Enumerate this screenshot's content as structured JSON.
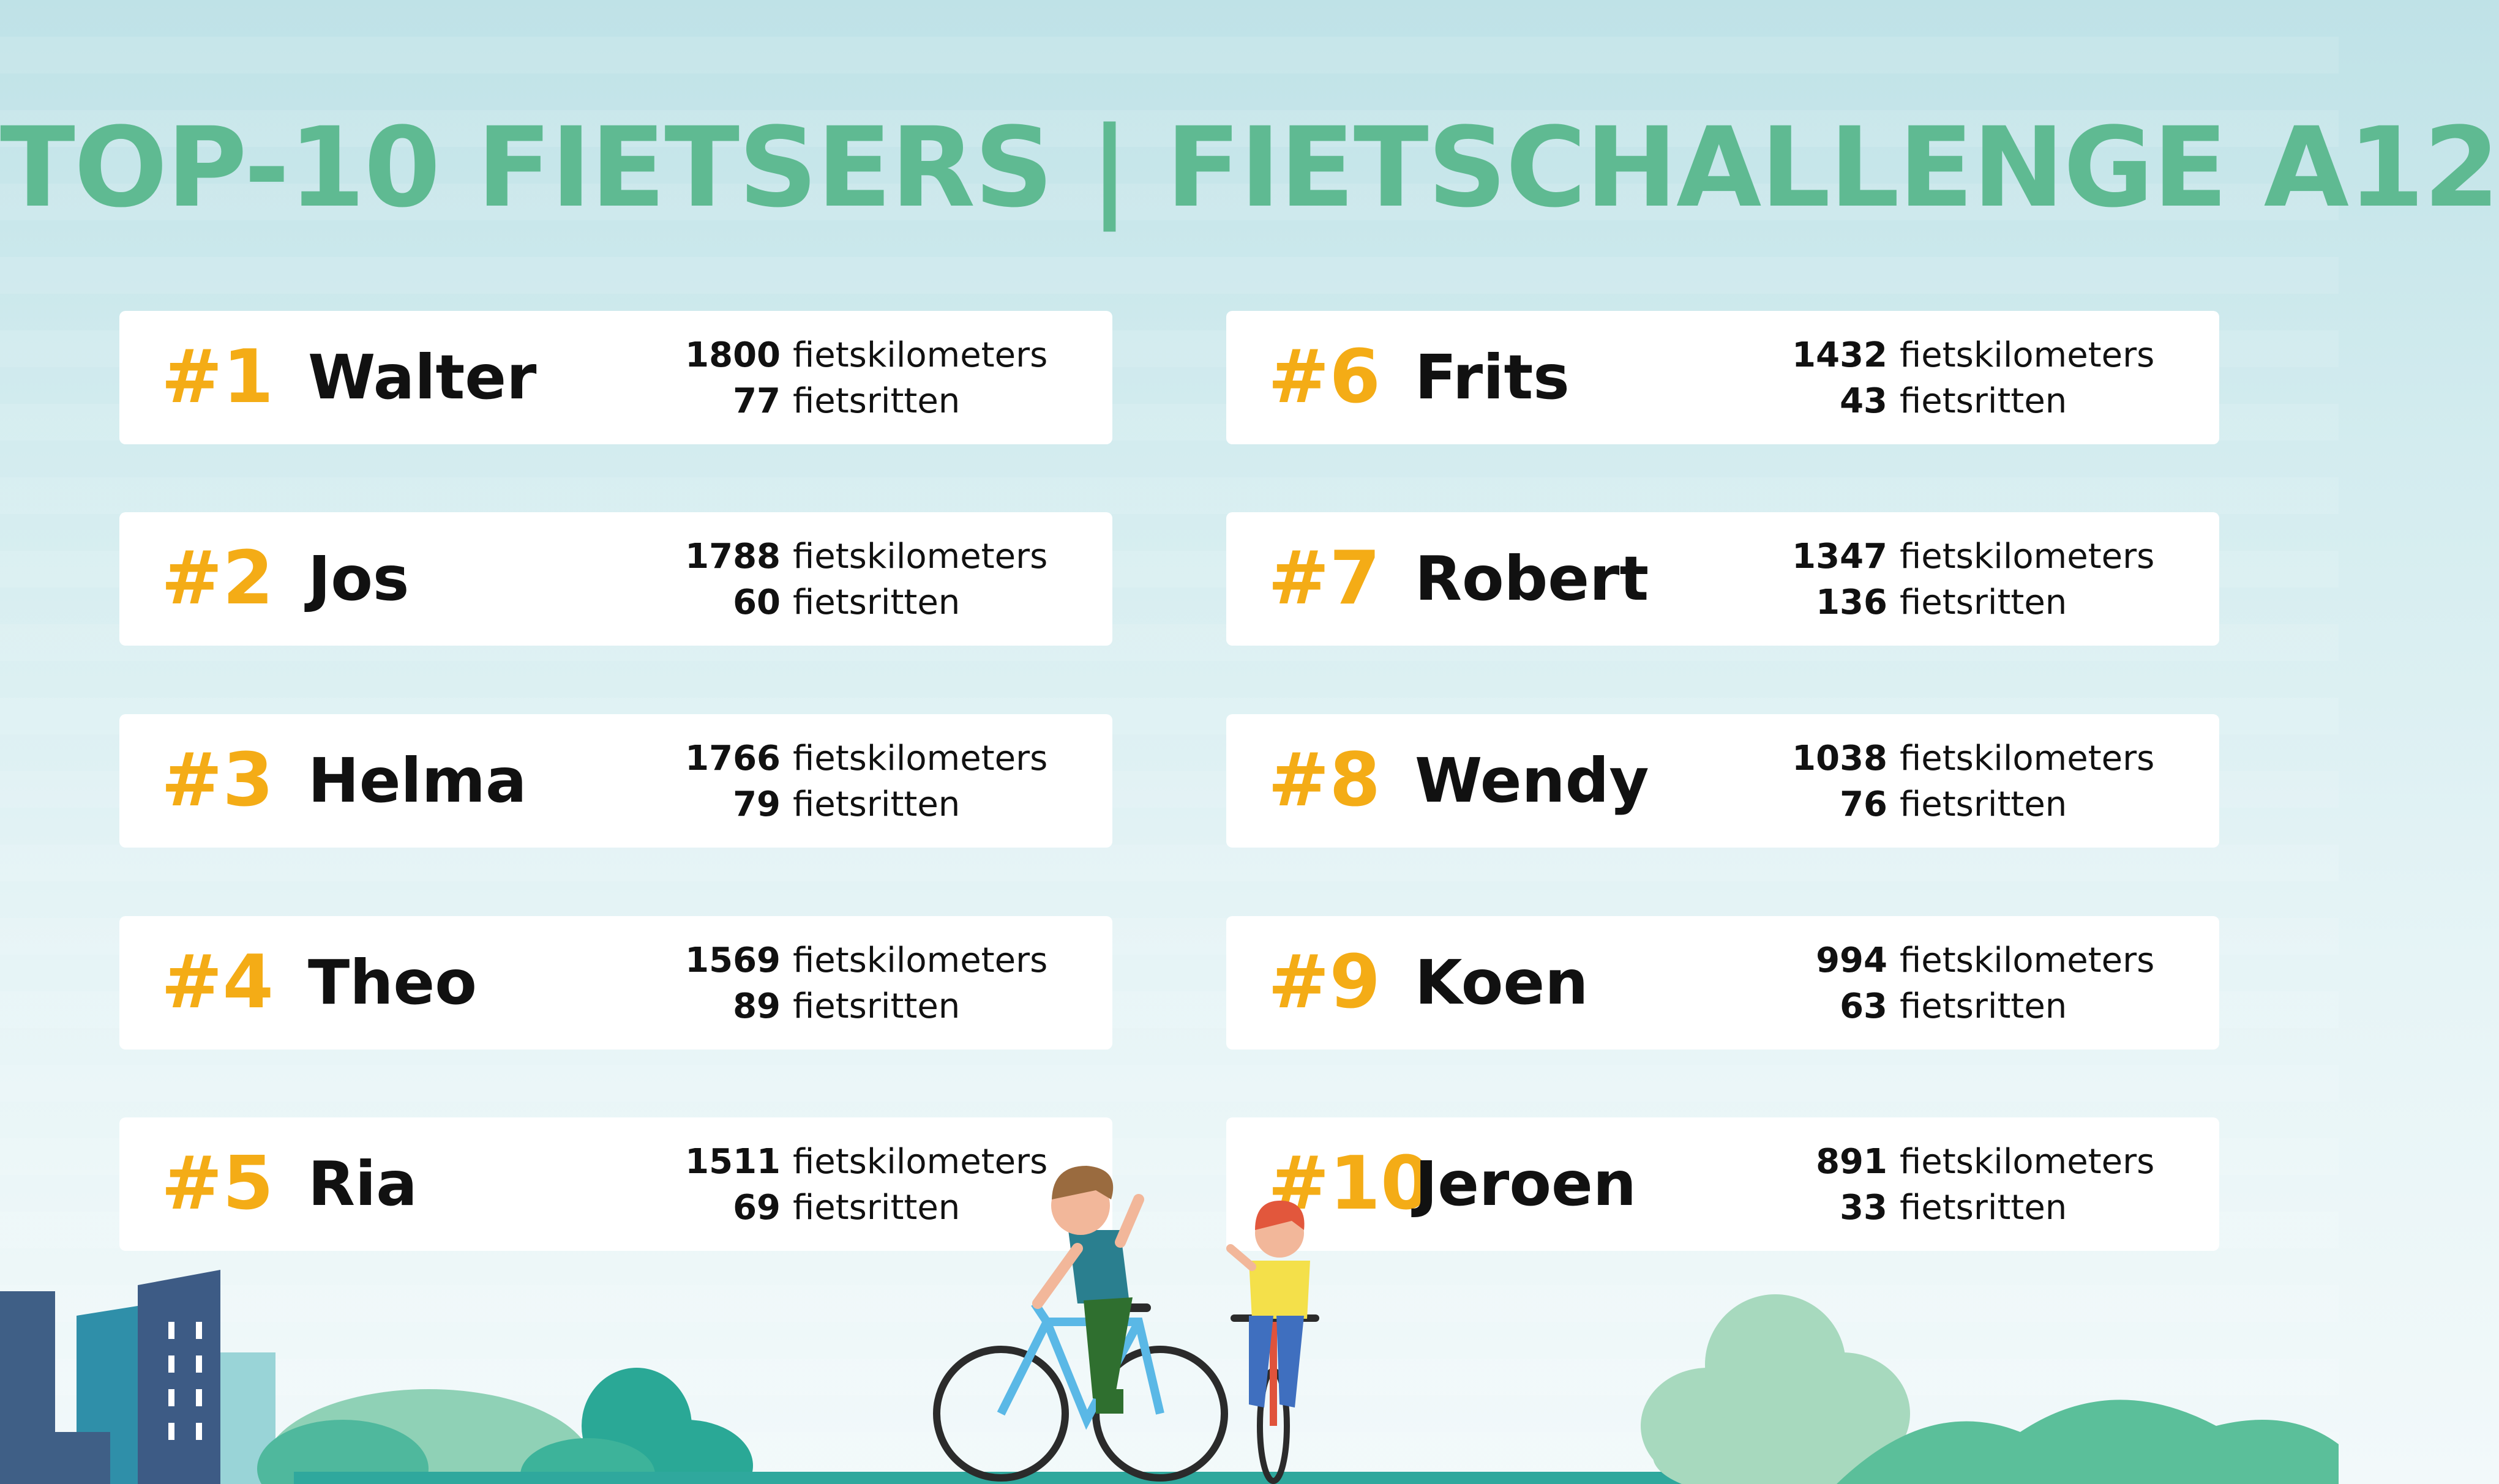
{
  "title": "TOP-10 FIETSERS | FIETSCHALLENGE A12",
  "colors": {
    "title": "#5fba92",
    "rank": "#f4ac16",
    "text": "#111111",
    "card": "#ffffff"
  },
  "unit_km": "fietskilometers",
  "unit_rides": "fietsritten",
  "riders": [
    {
      "rank": "#1",
      "name": "Walter",
      "km": "1800",
      "rides": "77"
    },
    {
      "rank": "#2",
      "name": "Jos",
      "km": "1788",
      "rides": "60"
    },
    {
      "rank": "#3",
      "name": "Helma",
      "km": "1766",
      "rides": "79"
    },
    {
      "rank": "#4",
      "name": "Theo",
      "km": "1569",
      "rides": "89"
    },
    {
      "rank": "#5",
      "name": "Ria",
      "km": "1511",
      "rides": "69"
    },
    {
      "rank": "#6",
      "name": "Frits",
      "km": "1432",
      "rides": "43"
    },
    {
      "rank": "#7",
      "name": "Robert",
      "km": "1347",
      "rides": "136"
    },
    {
      "rank": "#8",
      "name": "Wendy",
      "km": "1038",
      "rides": "76"
    },
    {
      "rank": "#9",
      "name": "Koen",
      "km": "994",
      "rides": "63"
    },
    {
      "rank": "#10",
      "name": "Jeroen",
      "km": "891",
      "rides": "33"
    }
  ]
}
